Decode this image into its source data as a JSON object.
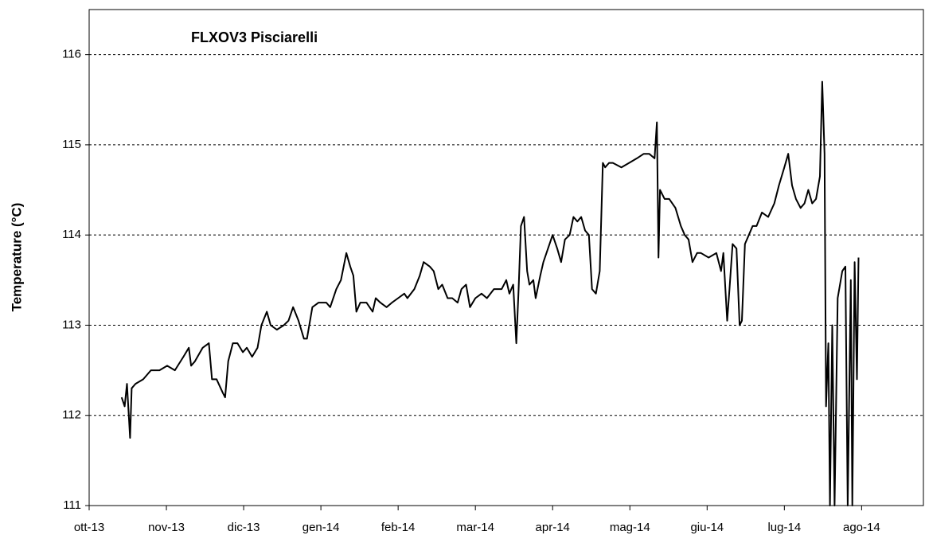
{
  "chart_data": {
    "type": "line",
    "title": "FLXOV3 Pisciarelli",
    "y_label": "Temperature (°C)",
    "xlim": [
      0,
      10.8
    ],
    "ylim": [
      111,
      116.5
    ],
    "xticks": [
      {
        "value": 0,
        "label": "ott-13"
      },
      {
        "value": 1,
        "label": "nov-13"
      },
      {
        "value": 2,
        "label": "dic-13"
      },
      {
        "value": 3,
        "label": "gen-14"
      },
      {
        "value": 4,
        "label": "feb-14"
      },
      {
        "value": 5,
        "label": "mar-14"
      },
      {
        "value": 6,
        "label": "apr-14"
      },
      {
        "value": 7,
        "label": "mag-14"
      },
      {
        "value": 8,
        "label": "giu-14"
      },
      {
        "value": 9,
        "label": "lug-14"
      },
      {
        "value": 10,
        "label": "ago-14"
      }
    ],
    "yticks": [
      111,
      112,
      113,
      114,
      115,
      116
    ],
    "grid": true,
    "series": [
      {
        "name": "FLXOV3 Pisciarelli",
        "color": "#000000",
        "x": [
          0.42,
          0.46,
          0.49,
          0.53,
          0.55,
          0.6,
          0.7,
          0.8,
          0.91,
          1.01,
          1.11,
          1.22,
          1.29,
          1.32,
          1.37,
          1.47,
          1.55,
          1.59,
          1.65,
          1.73,
          1.76,
          1.8,
          1.86,
          1.92,
          1.99,
          2.04,
          2.11,
          2.18,
          2.23,
          2.3,
          2.35,
          2.43,
          2.52,
          2.58,
          2.64,
          2.71,
          2.78,
          2.82,
          2.89,
          2.97,
          3.07,
          3.12,
          3.2,
          3.26,
          3.33,
          3.38,
          3.42,
          3.46,
          3.51,
          3.59,
          3.67,
          3.71,
          3.77,
          3.85,
          3.92,
          4.0,
          4.08,
          4.12,
          4.21,
          4.28,
          4.33,
          4.41,
          4.46,
          4.52,
          4.57,
          4.64,
          4.7,
          4.77,
          4.82,
          4.88,
          4.93,
          5.0,
          5.08,
          5.15,
          5.24,
          5.34,
          5.4,
          5.44,
          5.49,
          5.53,
          5.56,
          5.59,
          5.63,
          5.67,
          5.7,
          5.75,
          5.78,
          5.84,
          5.88,
          5.94,
          6.0,
          6.06,
          6.11,
          6.16,
          6.22,
          6.27,
          6.32,
          6.37,
          6.42,
          6.47,
          6.51,
          6.56,
          6.61,
          6.65,
          6.68,
          6.73,
          6.78,
          6.89,
          6.99,
          7.09,
          7.18,
          7.25,
          7.32,
          7.35,
          7.37,
          7.39,
          7.45,
          7.51,
          7.59,
          7.66,
          7.71,
          7.76,
          7.81,
          7.87,
          7.92,
          8.02,
          8.12,
          8.18,
          8.21,
          8.26,
          8.29,
          8.33,
          8.38,
          8.42,
          8.45,
          8.49,
          8.54,
          8.59,
          8.64,
          8.71,
          8.79,
          8.87,
          8.93,
          9.0,
          9.05,
          9.1,
          9.15,
          9.21,
          9.26,
          9.31,
          9.36,
          9.41,
          9.46,
          9.49,
          9.52,
          9.54,
          9.57,
          9.59,
          9.62,
          9.65,
          9.69,
          9.75,
          9.79,
          9.82,
          9.86,
          9.88,
          9.91,
          9.94,
          9.96
        ],
        "values": [
          112.2,
          112.1,
          112.35,
          111.75,
          112.3,
          112.35,
          112.4,
          112.5,
          112.5,
          112.55,
          112.5,
          112.65,
          112.75,
          112.55,
          112.6,
          112.75,
          112.8,
          112.4,
          112.4,
          112.25,
          112.2,
          112.6,
          112.8,
          112.8,
          112.7,
          112.75,
          112.65,
          112.75,
          113.0,
          113.15,
          113.0,
          112.95,
          113.0,
          113.05,
          113.2,
          113.05,
          112.85,
          112.85,
          113.2,
          113.25,
          113.25,
          113.2,
          113.4,
          113.5,
          113.8,
          113.65,
          113.55,
          113.15,
          113.25,
          113.25,
          113.15,
          113.3,
          113.25,
          113.2,
          113.25,
          113.3,
          113.35,
          113.3,
          113.4,
          113.55,
          113.7,
          113.65,
          113.6,
          113.4,
          113.45,
          113.3,
          113.3,
          113.25,
          113.4,
          113.45,
          113.2,
          113.3,
          113.35,
          113.3,
          113.4,
          113.4,
          113.5,
          113.35,
          113.45,
          112.8,
          113.4,
          114.1,
          114.2,
          113.6,
          113.45,
          113.5,
          113.3,
          113.55,
          113.7,
          113.85,
          114.0,
          113.85,
          113.7,
          113.95,
          114.0,
          114.2,
          114.15,
          114.2,
          114.05,
          114.0,
          113.4,
          113.35,
          113.6,
          114.8,
          114.75,
          114.8,
          114.8,
          114.75,
          114.8,
          114.85,
          114.9,
          114.9,
          114.85,
          115.25,
          113.75,
          114.5,
          114.4,
          114.4,
          114.3,
          114.1,
          114.0,
          113.95,
          113.7,
          113.8,
          113.8,
          113.75,
          113.8,
          113.6,
          113.8,
          113.05,
          113.4,
          113.9,
          113.85,
          113.0,
          113.05,
          113.9,
          114.0,
          114.1,
          114.1,
          114.25,
          114.2,
          114.35,
          114.55,
          114.75,
          114.9,
          114.55,
          114.4,
          114.3,
          114.35,
          114.5,
          114.35,
          114.4,
          114.65,
          115.7,
          114.9,
          112.1,
          112.8,
          111.0,
          113.0,
          111.0,
          113.3,
          113.6,
          113.65,
          111.0,
          113.5,
          111.0,
          113.7,
          112.4,
          113.75
        ]
      }
    ]
  }
}
